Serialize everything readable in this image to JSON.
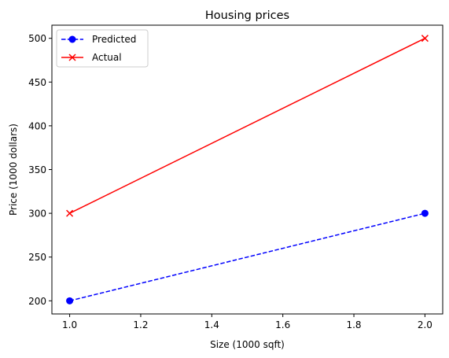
{
  "chart_data": {
    "type": "line",
    "title": "Housing prices",
    "xlabel": "Size (1000 sqft)",
    "ylabel": "Price (1000 dollars)",
    "xlim": [
      0.95,
      2.05
    ],
    "ylim": [
      185,
      515
    ],
    "x_ticks": [
      1.0,
      1.2,
      1.4,
      1.6,
      1.8,
      2.0
    ],
    "x_tick_labels": [
      "1.0",
      "1.2",
      "1.4",
      "1.6",
      "1.8",
      "2.0"
    ],
    "y_ticks": [
      200,
      250,
      300,
      350,
      400,
      450,
      500
    ],
    "y_tick_labels": [
      "200",
      "250",
      "300",
      "350",
      "400",
      "450",
      "500"
    ],
    "grid": false,
    "legend_position": "top-left",
    "series": [
      {
        "name": "Predicted",
        "x": [
          1.0,
          2.0
        ],
        "y": [
          200,
          300
        ],
        "color": "#0000ff",
        "linestyle": "dashed",
        "marker": "circle"
      },
      {
        "name": "Actual",
        "x": [
          1.0,
          2.0
        ],
        "y": [
          300,
          500
        ],
        "color": "#ff0000",
        "linestyle": "solid",
        "marker": "x"
      }
    ]
  }
}
